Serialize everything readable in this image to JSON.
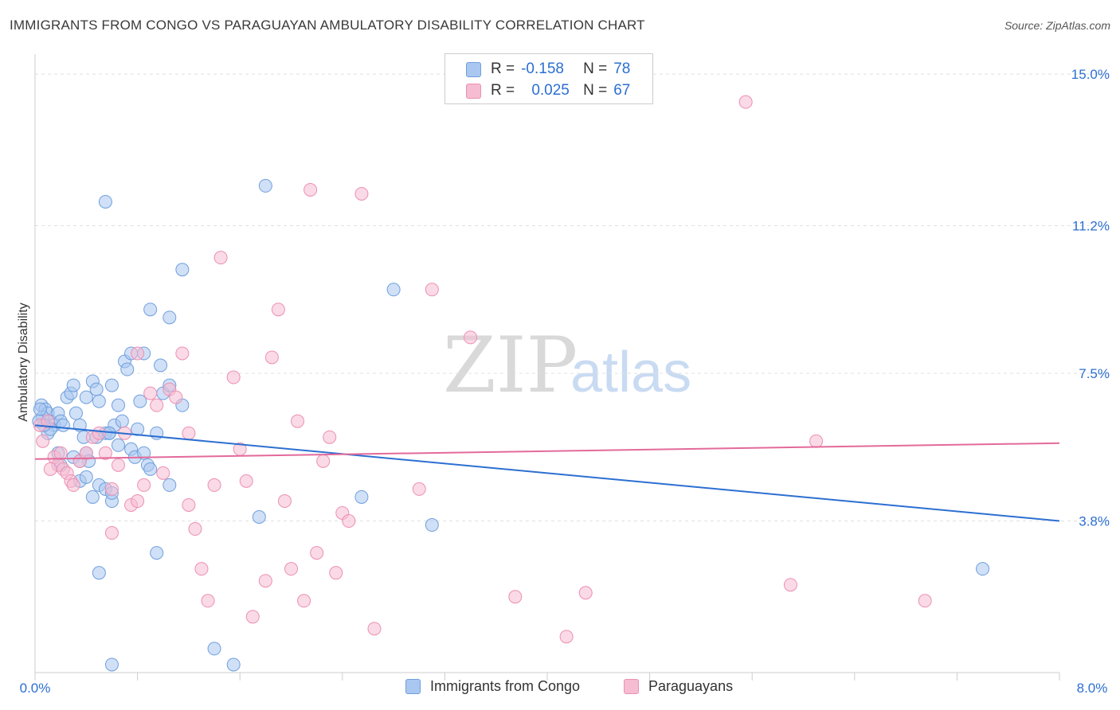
{
  "title": "IMMIGRANTS FROM CONGO VS PARAGUAYAN AMBULATORY DISABILITY CORRELATION CHART",
  "source": "Source: ZipAtlas.com",
  "watermark": {
    "zip": "ZIP",
    "atlas": "atlas"
  },
  "legend": {
    "rows": [
      {
        "r_label": "R =",
        "r_value": "-0.158",
        "n_label": "N =",
        "n_value": "78"
      },
      {
        "r_label": "R =",
        "r_value": "0.025",
        "n_label": "N =",
        "n_value": "67"
      }
    ]
  },
  "bottom_legend": [
    "Immigrants from Congo",
    "Paraguayans"
  ],
  "colors": {
    "blue_fill": "#a9c7f0",
    "blue_stroke": "#6f9fdc",
    "blue_line": "#2c6fd1",
    "pink_fill": "#f6bcd1",
    "pink_stroke": "#ec8fb2",
    "pink_line": "#e36a9a",
    "tick_label": "#2c6fd1",
    "grid": "#e0e0e0"
  },
  "chart_data": {
    "type": "scatter",
    "title": "IMMIGRANTS FROM CONGO VS PARAGUAYAN AMBULATORY DISABILITY CORRELATION CHART",
    "xlabel": "",
    "ylabel": "Ambulatory Disability",
    "xlim": [
      0,
      8.0
    ],
    "ylim": [
      0,
      15.5
    ],
    "x_tick_labels": [
      "0.0%",
      "8.0%"
    ],
    "y_ticks": [
      3.8,
      7.5,
      11.2,
      15.0
    ],
    "y_tick_labels": [
      "3.8%",
      "7.5%",
      "11.2%",
      "15.0%"
    ],
    "grid": true,
    "legend_position": "top-center",
    "series": [
      {
        "name": "Immigrants from Congo",
        "R": -0.158,
        "N": 78,
        "trend": {
          "x": [
            0,
            8.0
          ],
          "y": [
            6.2,
            3.8
          ]
        },
        "points": [
          [
            0.05,
            6.7
          ],
          [
            0.08,
            6.6
          ],
          [
            0.1,
            6.5
          ],
          [
            0.12,
            6.3
          ],
          [
            0.06,
            6.4
          ],
          [
            0.15,
            6.2
          ],
          [
            0.1,
            6.0
          ],
          [
            0.18,
            6.5
          ],
          [
            0.2,
            6.3
          ],
          [
            0.22,
            6.2
          ],
          [
            0.25,
            6.9
          ],
          [
            0.28,
            7.0
          ],
          [
            0.3,
            7.2
          ],
          [
            0.32,
            6.5
          ],
          [
            0.35,
            6.2
          ],
          [
            0.38,
            5.9
          ],
          [
            0.4,
            5.5
          ],
          [
            0.42,
            5.3
          ],
          [
            0.45,
            7.3
          ],
          [
            0.48,
            7.1
          ],
          [
            0.5,
            6.8
          ],
          [
            0.55,
            6.0
          ],
          [
            0.58,
            6.0
          ],
          [
            0.6,
            7.2
          ],
          [
            0.62,
            6.2
          ],
          [
            0.65,
            6.7
          ],
          [
            0.68,
            6.3
          ],
          [
            0.7,
            7.8
          ],
          [
            0.72,
            7.6
          ],
          [
            0.75,
            5.6
          ],
          [
            0.78,
            5.4
          ],
          [
            0.8,
            6.1
          ],
          [
            0.82,
            6.8
          ],
          [
            0.85,
            5.5
          ],
          [
            0.88,
            5.2
          ],
          [
            0.9,
            5.1
          ],
          [
            0.95,
            6.0
          ],
          [
            1.0,
            7.0
          ],
          [
            1.05,
            7.2
          ],
          [
            0.98,
            7.7
          ],
          [
            0.75,
            8.0
          ],
          [
            0.85,
            8.0
          ],
          [
            1.05,
            8.9
          ],
          [
            1.15,
            6.7
          ],
          [
            1.15,
            10.1
          ],
          [
            0.35,
            4.8
          ],
          [
            0.4,
            4.9
          ],
          [
            0.5,
            4.7
          ],
          [
            0.55,
            4.6
          ],
          [
            0.6,
            4.3
          ],
          [
            0.45,
            4.4
          ],
          [
            1.05,
            4.7
          ],
          [
            0.3,
            5.4
          ],
          [
            0.35,
            5.3
          ],
          [
            0.18,
            5.5
          ],
          [
            0.2,
            5.2
          ],
          [
            0.12,
            6.1
          ],
          [
            0.07,
            6.2
          ],
          [
            0.04,
            6.6
          ],
          [
            0.03,
            6.3
          ],
          [
            0.58,
            6.0
          ],
          [
            0.65,
            5.7
          ],
          [
            0.48,
            5.9
          ],
          [
            0.6,
            4.5
          ],
          [
            0.9,
            9.1
          ],
          [
            1.8,
            12.2
          ],
          [
            0.55,
            11.8
          ],
          [
            2.8,
            9.6
          ],
          [
            2.55,
            4.4
          ],
          [
            1.75,
            3.9
          ],
          [
            3.1,
            3.7
          ],
          [
            0.95,
            3.0
          ],
          [
            0.5,
            2.5
          ],
          [
            1.4,
            0.6
          ],
          [
            0.6,
            0.2
          ],
          [
            1.55,
            0.2
          ],
          [
            7.4,
            2.6
          ],
          [
            0.4,
            6.9
          ]
        ]
      },
      {
        "name": "Paraguayans",
        "R": 0.025,
        "N": 67,
        "trend": {
          "x": [
            0,
            8.0
          ],
          "y": [
            5.35,
            5.75
          ]
        },
        "points": [
          [
            0.04,
            6.2
          ],
          [
            0.06,
            5.8
          ],
          [
            0.1,
            6.3
          ],
          [
            0.15,
            5.4
          ],
          [
            0.18,
            5.2
          ],
          [
            0.22,
            5.1
          ],
          [
            0.25,
            5.0
          ],
          [
            0.28,
            4.8
          ],
          [
            0.3,
            4.7
          ],
          [
            0.35,
            5.3
          ],
          [
            0.4,
            5.5
          ],
          [
            0.45,
            5.9
          ],
          [
            0.5,
            6.0
          ],
          [
            0.55,
            5.5
          ],
          [
            0.6,
            4.6
          ],
          [
            0.65,
            5.2
          ],
          [
            0.7,
            6.0
          ],
          [
            0.75,
            4.2
          ],
          [
            0.8,
            4.3
          ],
          [
            0.85,
            4.7
          ],
          [
            0.9,
            7.0
          ],
          [
            0.95,
            6.7
          ],
          [
            1.0,
            5.0
          ],
          [
            1.05,
            7.1
          ],
          [
            1.1,
            6.9
          ],
          [
            1.15,
            8.0
          ],
          [
            1.2,
            4.2
          ],
          [
            1.25,
            3.6
          ],
          [
            1.3,
            2.6
          ],
          [
            1.35,
            1.8
          ],
          [
            1.4,
            4.7
          ],
          [
            1.45,
            10.4
          ],
          [
            1.55,
            7.4
          ],
          [
            1.6,
            5.6
          ],
          [
            1.65,
            4.8
          ],
          [
            1.7,
            1.4
          ],
          [
            1.8,
            2.3
          ],
          [
            1.85,
            7.9
          ],
          [
            1.9,
            9.1
          ],
          [
            1.95,
            4.3
          ],
          [
            2.0,
            2.6
          ],
          [
            2.05,
            6.3
          ],
          [
            2.1,
            1.8
          ],
          [
            2.15,
            12.1
          ],
          [
            2.2,
            3.0
          ],
          [
            2.25,
            5.3
          ],
          [
            2.3,
            5.9
          ],
          [
            2.35,
            2.5
          ],
          [
            2.4,
            4.0
          ],
          [
            2.45,
            3.8
          ],
          [
            2.55,
            12.0
          ],
          [
            2.65,
            1.1
          ],
          [
            3.0,
            4.6
          ],
          [
            3.1,
            9.6
          ],
          [
            3.4,
            8.4
          ],
          [
            3.75,
            1.9
          ],
          [
            4.15,
            0.9
          ],
          [
            4.3,
            2.0
          ],
          [
            5.55,
            14.3
          ],
          [
            5.9,
            2.2
          ],
          [
            6.1,
            5.8
          ],
          [
            6.95,
            1.8
          ],
          [
            0.8,
            8.0
          ],
          [
            0.6,
            3.5
          ],
          [
            1.2,
            6.0
          ],
          [
            0.2,
            5.5
          ],
          [
            0.12,
            5.1
          ]
        ]
      }
    ]
  }
}
